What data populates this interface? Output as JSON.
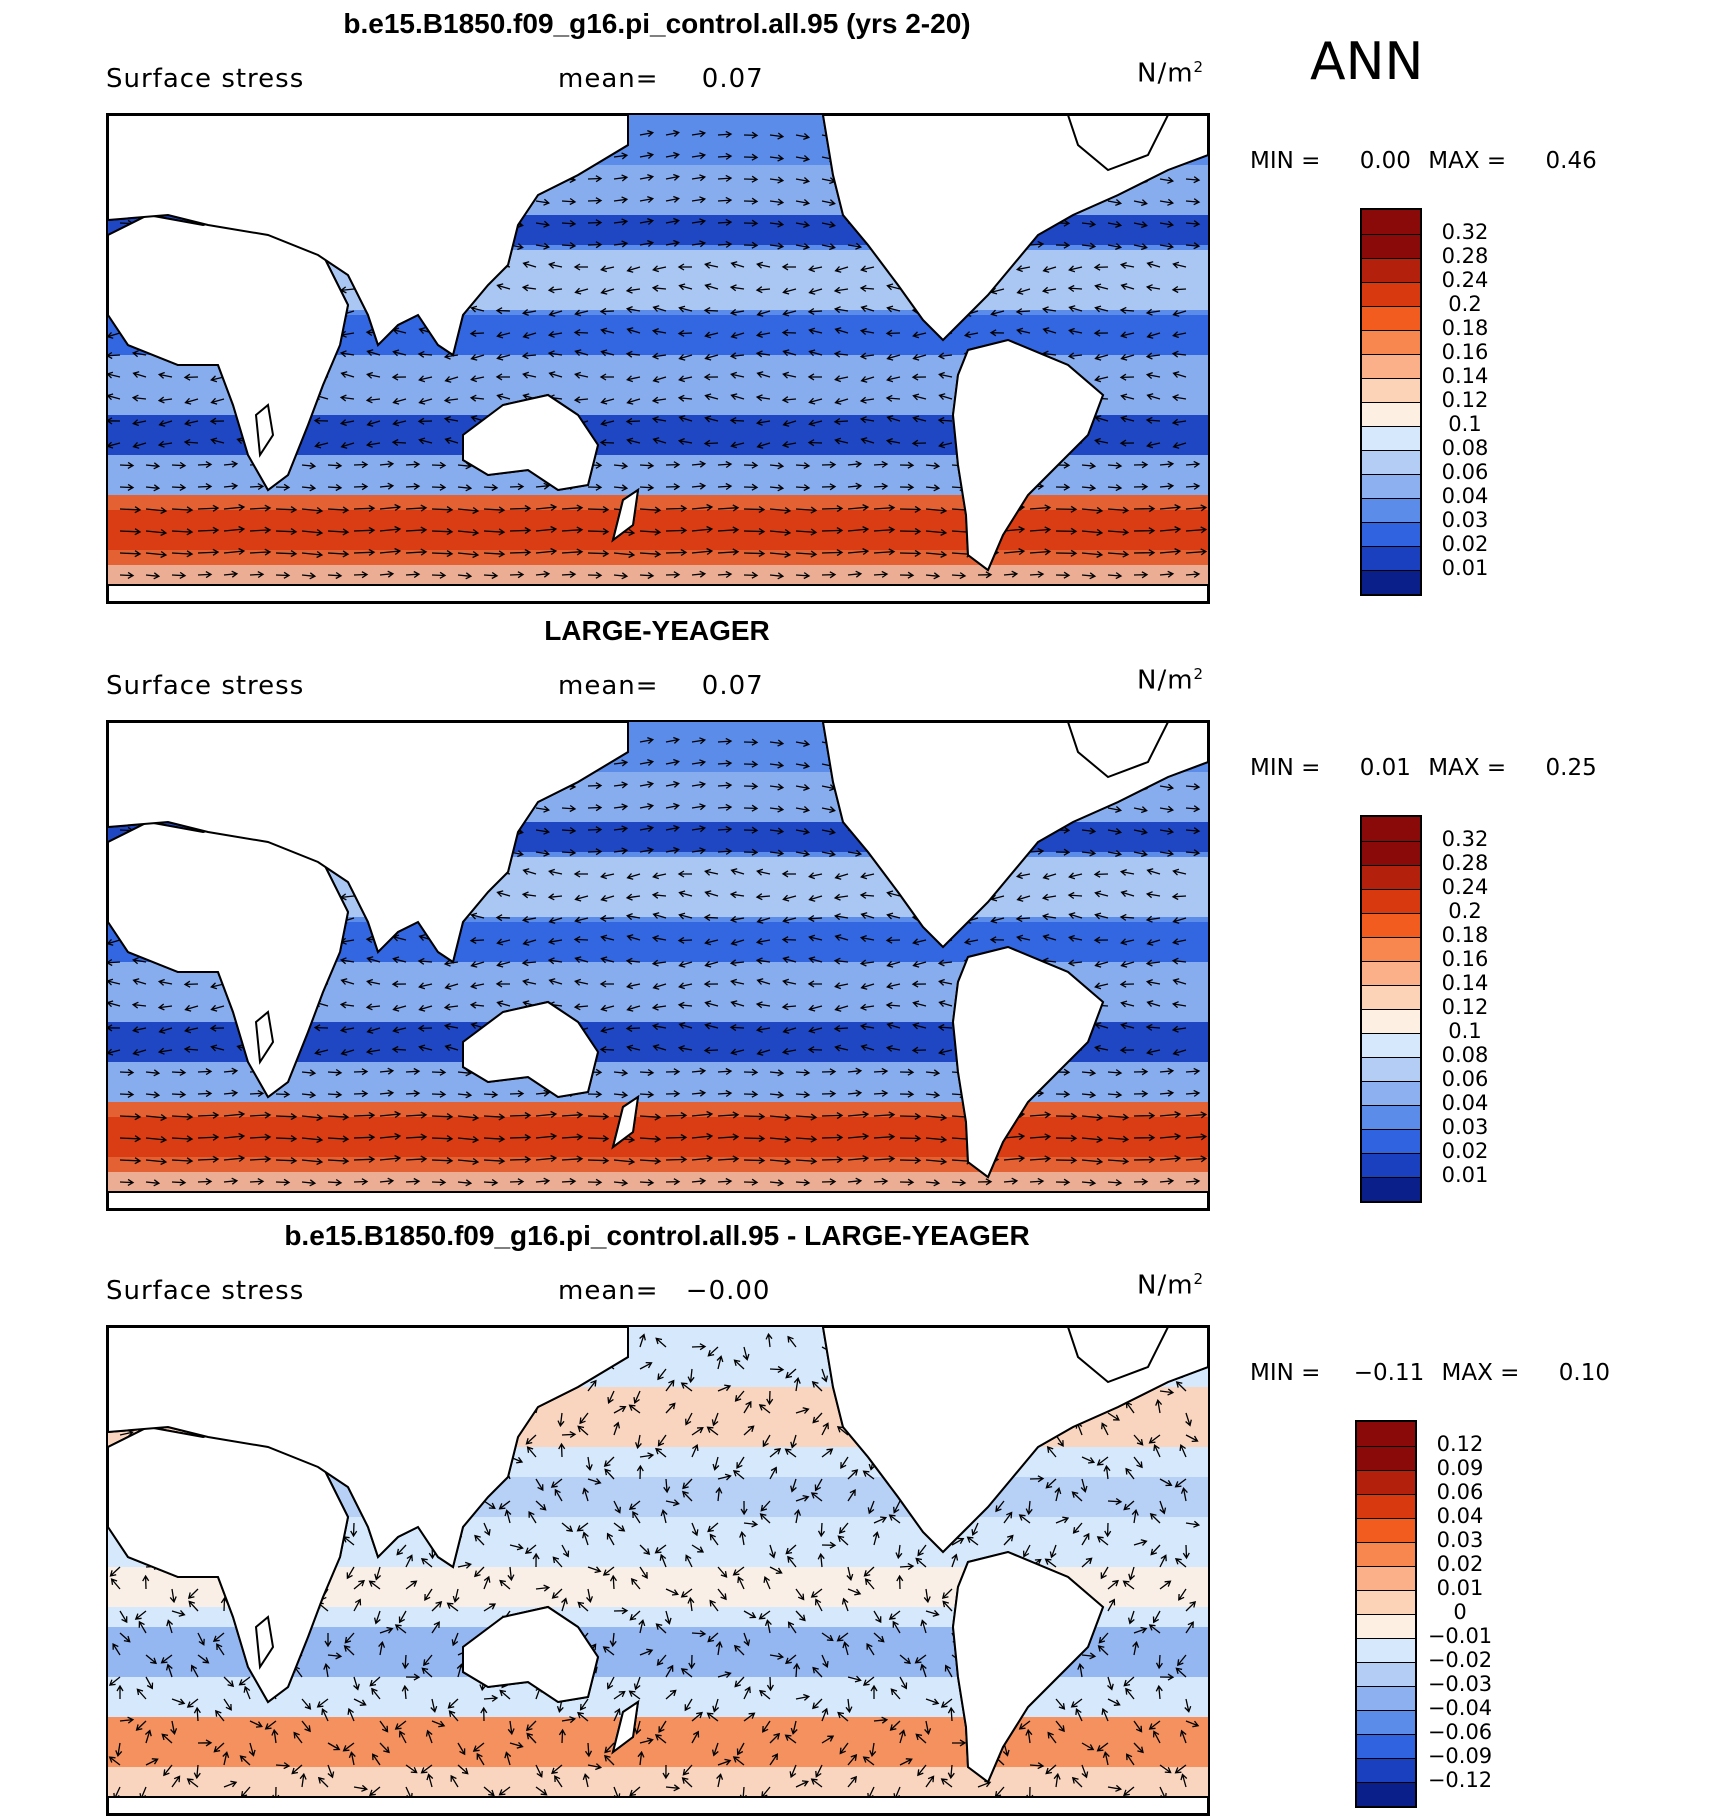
{
  "season": "ANN",
  "field_label": "Surface stress",
  "mean_prefix": "mean=",
  "units": "N/m",
  "units_exp": "2",
  "panels": [
    {
      "title": "b.e15.B1850.f09_g16.pi_control.all.95 (yrs 2-20)",
      "mean": "0.07",
      "min_label": "MIN =",
      "min": "0.00",
      "max_label": "MAX =",
      "max": "0.46",
      "legend": [
        "0.32",
        "0.28",
        "0.24",
        "0.2",
        "0.18",
        "0.16",
        "0.14",
        "0.12",
        "0.1",
        "0.08",
        "0.06",
        "0.04",
        "0.03",
        "0.02",
        "0.01"
      ],
      "colors": [
        "#8a0a0a",
        "#b3200c",
        "#d8390f",
        "#f25c1e",
        "#f7874e",
        "#fbb08a",
        "#fdd3b8",
        "#fdf0e3",
        "#d6e8fb",
        "#b3cdf5",
        "#8db0f0",
        "#5b8cea",
        "#2f63e0",
        "#1a3fbf",
        "#0a1f8a"
      ]
    },
    {
      "title": "LARGE-YEAGER",
      "mean": "0.07",
      "min_label": "MIN =",
      "min": "0.01",
      "max_label": "MAX =",
      "max": "0.25",
      "legend": [
        "0.32",
        "0.28",
        "0.24",
        "0.2",
        "0.18",
        "0.16",
        "0.14",
        "0.12",
        "0.1",
        "0.08",
        "0.06",
        "0.04",
        "0.03",
        "0.02",
        "0.01"
      ],
      "colors": [
        "#8a0a0a",
        "#b3200c",
        "#d8390f",
        "#f25c1e",
        "#f7874e",
        "#fbb08a",
        "#fdd3b8",
        "#fdf0e3",
        "#d6e8fb",
        "#b3cdf5",
        "#8db0f0",
        "#5b8cea",
        "#2f63e0",
        "#1a3fbf",
        "#0a1f8a"
      ]
    },
    {
      "title": "b.e15.B1850.f09_g16.pi_control.all.95 - LARGE-YEAGER",
      "mean": "−0.00",
      "min_label": "MIN =",
      "min": "−0.11",
      "max_label": "MAX =",
      "max": "0.10",
      "legend": [
        "0.12",
        "0.09",
        "0.06",
        "0.04",
        "0.03",
        "0.02",
        "0.01",
        "0",
        "−0.01",
        "−0.02",
        "−0.03",
        "−0.04",
        "−0.06",
        "−0.09",
        "−0.12"
      ],
      "colors": [
        "#8a0a0a",
        "#b3200c",
        "#d8390f",
        "#f25c1e",
        "#f7874e",
        "#fbb08a",
        "#fdd3b8",
        "#fdf0e3",
        "#d6e8fb",
        "#b3cdf5",
        "#8db0f0",
        "#5b8cea",
        "#2f63e0",
        "#1a3fbf",
        "#0a1f8a"
      ]
    }
  ]
}
